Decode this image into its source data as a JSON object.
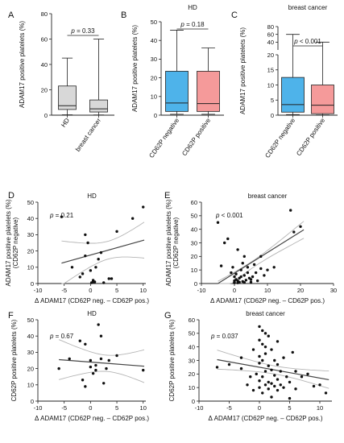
{
  "chart_data": [
    {
      "panel": "A",
      "type": "box",
      "title": "",
      "ylabel": "ADAM17 positive platelets (%)",
      "yticks": [
        0,
        20,
        40,
        60,
        80
      ],
      "ylim": [
        0,
        80
      ],
      "categories": [
        "HD",
        "breast cancer"
      ],
      "colors": [
        "#d8d8d8",
        "#d8d8d8"
      ],
      "boxes": [
        {
          "min": 0.3,
          "q1": 4.5,
          "median": 7.5,
          "q3": 23,
          "max": 45
        },
        {
          "min": 0.2,
          "q1": 2.5,
          "median": 5,
          "q3": 12,
          "max": 60
        }
      ],
      "pvalue": "p = 0.33"
    },
    {
      "panel": "B",
      "type": "box",
      "title": "HD",
      "ylabel": "ADAM17 positive platelets (%)",
      "yticks": [
        0,
        10,
        20,
        30,
        40,
        50
      ],
      "ylim": [
        0,
        50
      ],
      "categories": [
        "CD62P negative",
        "CD62P positive"
      ],
      "colors": [
        "#4eb3ea",
        "#f59a9a"
      ],
      "boxes": [
        {
          "min": 0.5,
          "q1": 2,
          "median": 6.5,
          "q3": 23.5,
          "max": 45.5
        },
        {
          "min": 0.5,
          "q1": 2,
          "median": 6.2,
          "q3": 23.5,
          "max": 36
        }
      ],
      "pvalue": "p = 0.18"
    },
    {
      "panel": "C",
      "type": "box",
      "title": "breast cancer",
      "ylabel": "ADAM17 positive platelets (%)",
      "yticks": [
        "0",
        "5",
        "10",
        "15",
        "20",
        "40",
        "60",
        "80"
      ],
      "categories": [
        "CD62P negative",
        "CD62P positive"
      ],
      "colors": [
        "#4eb3ea",
        "#f59a9a"
      ],
      "boxes": [
        {
          "min": 0.2,
          "q1": 1,
          "median": 3.5,
          "q3": 12.5,
          "max": 60
        },
        {
          "min": 0.1,
          "q1": 0.5,
          "median": 3.3,
          "q3": 10,
          "max": 40
        }
      ],
      "pvalue": "p < 0.001"
    },
    {
      "panel": "D",
      "type": "scatter",
      "title": "HD",
      "xlabel": "Δ ADAM17  (CD62P neg. – CD62P pos.)",
      "ylabel": "ADAM17 positive platelets (%)\n(CD62P negative)",
      "xticks": [
        -10,
        -5,
        0,
        5,
        10
      ],
      "yticks": [
        0,
        10,
        20,
        30,
        40,
        50
      ],
      "xlim": [
        -10,
        10.5
      ],
      "ylim": [
        0,
        50
      ],
      "pvalue": "p = 0.21",
      "regression": {
        "intercept": 17.5,
        "slope": 0.9
      },
      "points": [
        [
          -5.5,
          41
        ],
        [
          -3.5,
          10
        ],
        [
          -2,
          4
        ],
        [
          -1.5,
          6
        ],
        [
          -1,
          30
        ],
        [
          -0.5,
          25
        ],
        [
          -1,
          17
        ],
        [
          0,
          8
        ],
        [
          0.5,
          2
        ],
        [
          0.5,
          1
        ],
        [
          0.2,
          0.5
        ],
        [
          0.8,
          1
        ],
        [
          1,
          10
        ],
        [
          1.5,
          15
        ],
        [
          2,
          19
        ],
        [
          2.5,
          0.5
        ],
        [
          3.5,
          3
        ],
        [
          4,
          3
        ],
        [
          5,
          32
        ],
        [
          8,
          40
        ],
        [
          10,
          47
        ]
      ]
    },
    {
      "panel": "E",
      "type": "scatter",
      "title": "breast cancer",
      "xlabel": "Δ ADAM17  (CD62P neg. – CD62P pos.)",
      "ylabel": "ADAM17 positive platelets (%)\n(CD62P negative)",
      "xticks": [
        -10,
        0,
        10,
        20,
        30
      ],
      "yticks": [
        0,
        10,
        20,
        30,
        40,
        50,
        60
      ],
      "xlim": [
        -10,
        30
      ],
      "ylim": [
        0,
        60
      ],
      "pvalue": "p < 0.001",
      "regression": {
        "intercept": 5,
        "slope": 1.65
      },
      "points": [
        [
          -5,
          45
        ],
        [
          -3,
          30
        ],
        [
          -2,
          33
        ],
        [
          -4,
          13
        ],
        [
          -1,
          8
        ],
        [
          -0.5,
          12
        ],
        [
          0,
          5
        ],
        [
          0,
          2
        ],
        [
          0,
          1
        ],
        [
          0,
          0.5
        ],
        [
          0.5,
          3
        ],
        [
          0.5,
          7
        ],
        [
          1,
          2
        ],
        [
          1,
          0.5
        ],
        [
          1.5,
          4
        ],
        [
          1.5,
          1
        ],
        [
          2,
          5
        ],
        [
          2,
          10
        ],
        [
          2.5,
          1.5
        ],
        [
          2.5,
          15
        ],
        [
          3,
          0.8
        ],
        [
          3,
          6
        ],
        [
          3.5,
          2.5
        ],
        [
          4,
          8
        ],
        [
          4,
          12
        ],
        [
          4.5,
          4
        ],
        [
          5,
          3
        ],
        [
          5,
          1
        ],
        [
          5.5,
          5
        ],
        [
          6,
          14
        ],
        [
          6.5,
          8
        ],
        [
          7,
          2
        ],
        [
          8,
          20
        ],
        [
          8,
          11
        ],
        [
          9,
          6
        ],
        [
          10,
          10
        ],
        [
          12,
          12
        ],
        [
          3,
          20
        ],
        [
          1,
          25
        ],
        [
          17,
          54
        ],
        [
          18,
          38
        ],
        [
          20,
          42
        ]
      ]
    },
    {
      "panel": "F",
      "type": "scatter",
      "title": "HD",
      "xlabel": "Δ ADAM17  (CD62P neg. – CD62P pos.)",
      "ylabel": "CD62P positive platelets (%)",
      "xticks": [
        -10,
        -5,
        0,
        5,
        10
      ],
      "yticks": [
        0,
        10,
        20,
        30,
        40,
        50
      ],
      "xlim": [
        -10,
        10.5
      ],
      "ylim": [
        0,
        50
      ],
      "pvalue": "p = 0.67",
      "regression": {
        "intercept": 24,
        "slope": -0.25
      },
      "points": [
        [
          -6,
          20
        ],
        [
          -4,
          26
        ],
        [
          -2,
          37
        ],
        [
          -1,
          35
        ],
        [
          -1.5,
          13
        ],
        [
          -1,
          9
        ],
        [
          0,
          25
        ],
        [
          0,
          21
        ],
        [
          0.5,
          17
        ],
        [
          1,
          22
        ],
        [
          1,
          19
        ],
        [
          1.5,
          47
        ],
        [
          2,
          40
        ],
        [
          2,
          26
        ],
        [
          2.5,
          11
        ],
        [
          3,
          20
        ],
        [
          3.5,
          25
        ],
        [
          5,
          28
        ],
        [
          10,
          19
        ]
      ]
    },
    {
      "panel": "G",
      "type": "scatter",
      "title": "breast cancer",
      "xlabel": "Δ ADAM17  (CD62P neg. – CD62P pos.)",
      "ylabel": "CD62P positive platelets (%)",
      "xticks": [
        -10,
        -5,
        0,
        5,
        10
      ],
      "yticks": [
        0,
        10,
        20,
        30,
        40,
        50,
        60
      ],
      "xlim": [
        -10,
        12
      ],
      "ylim": [
        0,
        60
      ],
      "pvalue": "p = 0.037",
      "regression": {
        "intercept": 25,
        "slope": -0.8
      },
      "points": [
        [
          -7,
          25
        ],
        [
          -5,
          27
        ],
        [
          -3,
          24
        ],
        [
          -2,
          12
        ],
        [
          -1,
          38
        ],
        [
          -1,
          8
        ],
        [
          -0.5,
          20
        ],
        [
          0,
          55
        ],
        [
          0,
          45
        ],
        [
          0,
          33
        ],
        [
          0,
          28
        ],
        [
          0,
          15
        ],
        [
          0,
          10
        ],
        [
          0.5,
          52
        ],
        [
          0.5,
          42
        ],
        [
          0.5,
          30
        ],
        [
          0.5,
          18
        ],
        [
          0.5,
          6
        ],
        [
          1,
          50
        ],
        [
          1,
          40
        ],
        [
          1,
          35
        ],
        [
          1,
          22
        ],
        [
          1,
          12
        ],
        [
          1.5,
          48
        ],
        [
          1.5,
          26
        ],
        [
          1.5,
          14
        ],
        [
          1.5,
          9
        ],
        [
          2,
          38
        ],
        [
          2,
          23
        ],
        [
          2,
          13
        ],
        [
          2,
          3
        ],
        [
          2.5,
          30
        ],
        [
          2.5,
          19
        ],
        [
          2.5,
          11
        ],
        [
          3,
          44
        ],
        [
          3,
          27
        ],
        [
          3,
          16
        ],
        [
          3,
          8
        ],
        [
          3.5,
          22
        ],
        [
          3.5,
          12
        ],
        [
          4,
          32
        ],
        [
          4,
          10
        ],
        [
          4.5,
          18
        ],
        [
          5,
          14
        ],
        [
          5,
          2
        ],
        [
          5.5,
          36
        ],
        [
          6,
          22
        ],
        [
          6,
          9
        ],
        [
          7,
          18
        ],
        [
          8,
          20
        ],
        [
          9,
          11
        ],
        [
          10,
          12
        ],
        [
          11,
          6
        ],
        [
          -3,
          32
        ],
        [
          -1.5,
          18
        ]
      ]
    }
  ]
}
